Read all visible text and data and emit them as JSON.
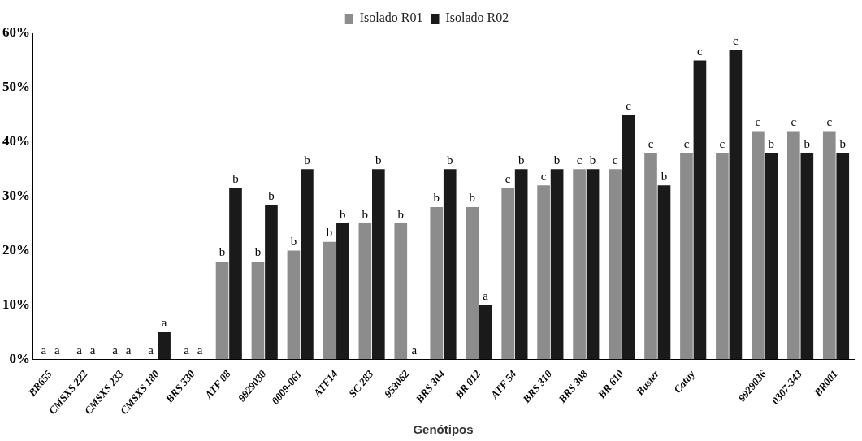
{
  "chart_data": {
    "type": "bar",
    "xlabel": "Genótipos",
    "categories": [
      "BR655",
      "CMSXS 222",
      "CMSXS 233",
      "CMSXS 180",
      "BRS 330",
      "ATF 08",
      "9929030",
      "0009-061",
      "ATF14",
      "SC 283",
      "953062",
      "BRS 304",
      "BR 012",
      "ATF 54",
      "BRS 310",
      "BRS 308",
      "BR 610",
      "Buster",
      "Catuy",
      null,
      "9929036",
      "0307-343",
      "BR001"
    ],
    "series": [
      {
        "name": "Isolado R01",
        "color": "#8c8c8c",
        "values": [
          0,
          0,
          0,
          0,
          0,
          18,
          18,
          20,
          21.6,
          25,
          25,
          28,
          28,
          31.5,
          32,
          35,
          35,
          38,
          38,
          38,
          42,
          42,
          42
        ],
        "value_labels": [
          "a",
          "a",
          "a",
          "a",
          "a",
          "b",
          "b",
          "b",
          "b",
          "b",
          "b",
          "b",
          "b",
          "c",
          "c",
          "c",
          "c",
          "c",
          "c",
          "c",
          "c",
          "c",
          "c"
        ]
      },
      {
        "name": "Isolado R02",
        "color": "#1a1a1a",
        "values": [
          0,
          0,
          0,
          5,
          0,
          31.5,
          28.3,
          35,
          25,
          35,
          0,
          35,
          10,
          35,
          35,
          35,
          45,
          32,
          55,
          57,
          38,
          38,
          38
        ],
        "value_labels": [
          "a",
          "a",
          "a",
          "a",
          "a",
          "b",
          "b",
          "b",
          "b",
          "b",
          "a",
          "b",
          "a",
          "b",
          "b",
          "b",
          "c",
          "b",
          "c",
          "c",
          "b",
          "b",
          "b"
        ]
      }
    ],
    "ylim": [
      0,
      60
    ],
    "yticks": [
      {
        "value": 0,
        "label": "0%"
      },
      {
        "value": 10,
        "label": "10%"
      },
      {
        "value": 20,
        "label": "20%"
      },
      {
        "value": 30,
        "label": "30%"
      },
      {
        "value": 40,
        "label": "40%"
      },
      {
        "value": 50,
        "label": "50%"
      },
      {
        "value": 60,
        "label": "60%"
      }
    ],
    "legend": "top"
  }
}
